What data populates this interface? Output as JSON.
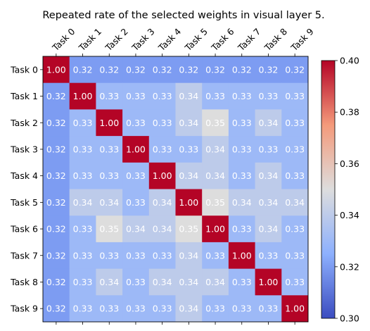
{
  "chart_data": {
    "type": "heatmap",
    "title": "Repeated rate of the selected weights in visual layer 5.",
    "x_labels": [
      "Task 0",
      "Task 1",
      "Task 2",
      "Task 3",
      "Task 4",
      "Task 5",
      "Task 6",
      "Task 7",
      "Task 8",
      "Task 9"
    ],
    "y_labels": [
      "Task 0",
      "Task 1",
      "Task 2",
      "Task 3",
      "Task 4",
      "Task 5",
      "Task 6",
      "Task 7",
      "Task 8",
      "Task 9"
    ],
    "values": [
      [
        1.0,
        0.32,
        0.32,
        0.32,
        0.32,
        0.32,
        0.32,
        0.32,
        0.32,
        0.32
      ],
      [
        0.32,
        1.0,
        0.33,
        0.33,
        0.33,
        0.34,
        0.33,
        0.33,
        0.33,
        0.33
      ],
      [
        0.32,
        0.33,
        1.0,
        0.33,
        0.33,
        0.34,
        0.35,
        0.33,
        0.34,
        0.33
      ],
      [
        0.32,
        0.33,
        0.33,
        1.0,
        0.33,
        0.33,
        0.34,
        0.33,
        0.33,
        0.33
      ],
      [
        0.32,
        0.33,
        0.33,
        0.33,
        1.0,
        0.34,
        0.34,
        0.33,
        0.34,
        0.33
      ],
      [
        0.32,
        0.34,
        0.34,
        0.33,
        0.34,
        1.0,
        0.35,
        0.34,
        0.34,
        0.34
      ],
      [
        0.32,
        0.33,
        0.35,
        0.34,
        0.34,
        0.35,
        1.0,
        0.33,
        0.34,
        0.33
      ],
      [
        0.32,
        0.33,
        0.33,
        0.33,
        0.33,
        0.34,
        0.33,
        1.0,
        0.33,
        0.33
      ],
      [
        0.32,
        0.33,
        0.34,
        0.33,
        0.34,
        0.34,
        0.34,
        0.33,
        1.0,
        0.33
      ],
      [
        0.32,
        0.33,
        0.33,
        0.33,
        0.33,
        0.34,
        0.33,
        0.33,
        0.33,
        1.0
      ]
    ],
    "colormap": "coolwarm",
    "vmin": 0.3,
    "vmax": 0.4,
    "colorbar_ticks": [
      "0.30",
      "0.32",
      "0.34",
      "0.36",
      "0.38",
      "0.40"
    ],
    "x_tick_position": "top",
    "x_tick_rotation_deg": 45,
    "grid": false,
    "annotation_color": "#ffffff"
  }
}
